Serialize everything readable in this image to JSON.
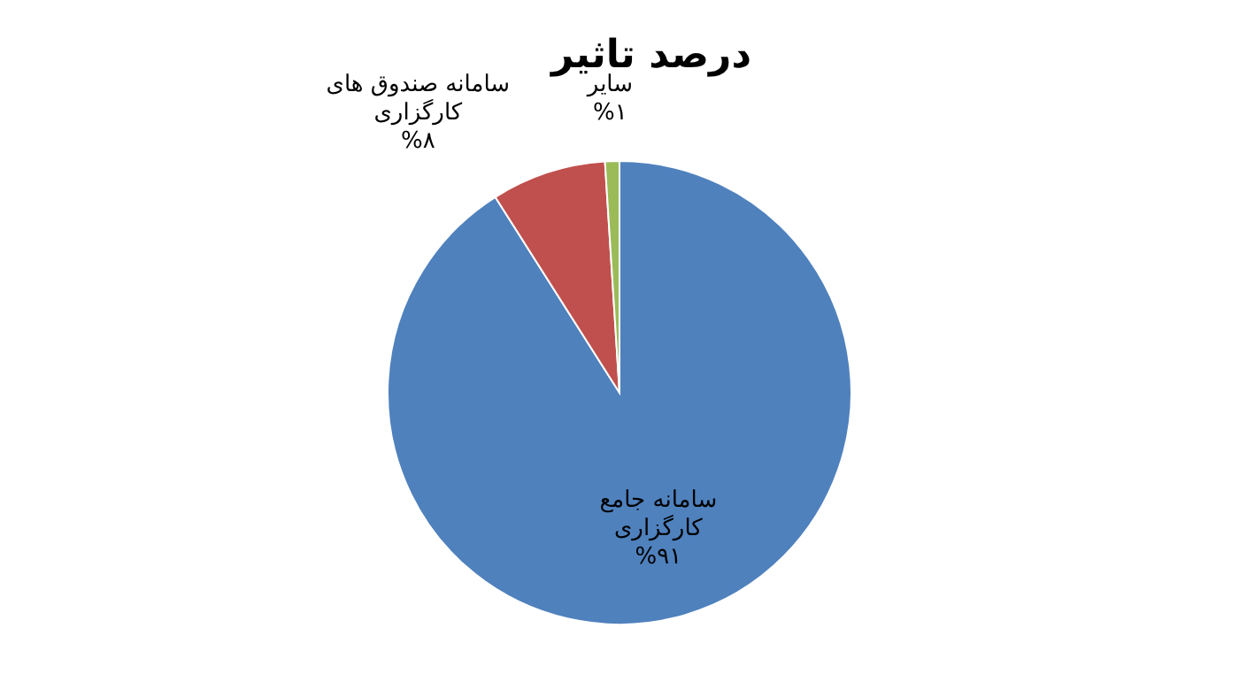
{
  "chart_data": {
    "type": "pie",
    "title": "درصد تاثیر",
    "categories": [
      "سامانه جامع کارگزاری",
      "سامانه صندوق های کارگزاری",
      "سایر"
    ],
    "values": [
      91,
      8,
      1
    ],
    "value_labels": [
      "%۹۱",
      "%۸",
      "%۱"
    ],
    "colors": [
      "#4f81bd",
      "#c0504d",
      "#9bbb59"
    ],
    "legend": false
  }
}
